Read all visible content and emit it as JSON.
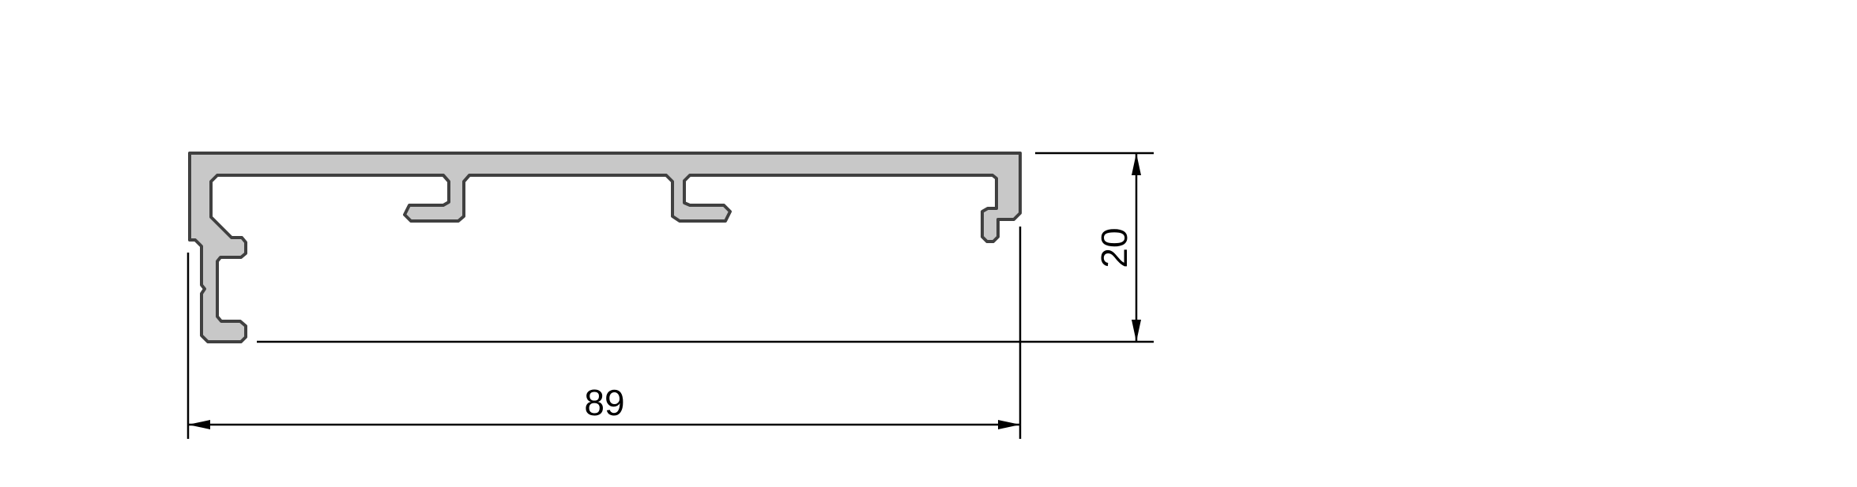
{
  "drawing": {
    "dimensions": {
      "width_label": "89",
      "height_label": "20"
    },
    "colors": {
      "profile_fill": "#c8c8c8",
      "profile_stroke": "#404040",
      "dimension_lines": "#000000",
      "background": "#ffffff"
    }
  }
}
